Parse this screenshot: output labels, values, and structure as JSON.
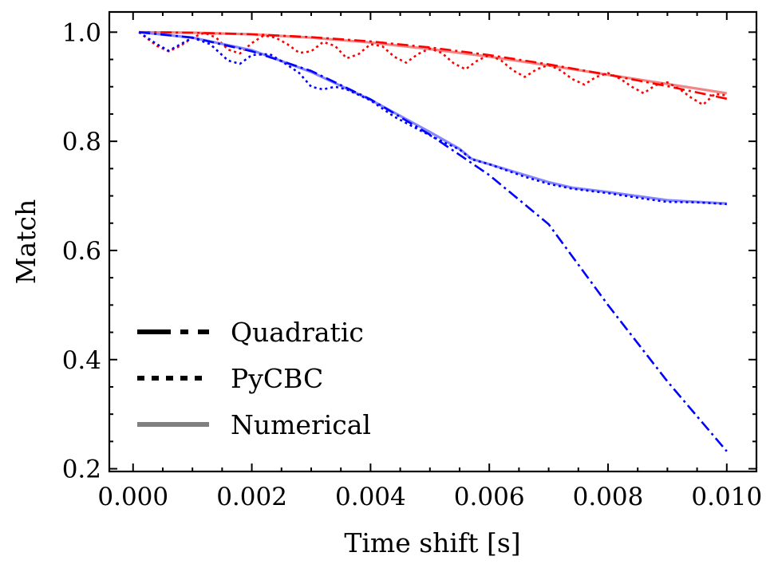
{
  "chart_data": {
    "type": "line",
    "xlabel": "Time shift [s]",
    "ylabel": "Match",
    "xlim": [
      -0.0004,
      0.0105
    ],
    "ylim": [
      0.195,
      1.037
    ],
    "x_ticks": [
      0.0,
      0.002,
      0.004,
      0.006,
      0.008,
      0.01
    ],
    "x_tick_labels": [
      "0.000",
      "0.002",
      "0.004",
      "0.006",
      "0.008",
      "0.010"
    ],
    "y_ticks": [
      0.2,
      0.4,
      0.6,
      0.8,
      1.0
    ],
    "y_tick_labels": [
      "0.2",
      "0.4",
      "0.6",
      "0.8",
      "1.0"
    ],
    "legend": {
      "placement": "lower-left",
      "entries": [
        {
          "label": "Quadratic",
          "style": "dashdot",
          "color": "#000000"
        },
        {
          "label": "PyCBC",
          "style": "dotted",
          "color": "#000000"
        },
        {
          "label": "Numerical",
          "style": "solid",
          "color": "#808080"
        }
      ]
    },
    "series": [
      {
        "name": "Numerical (red)",
        "style": "solid",
        "color": "#f08080",
        "x": [
          0.0001,
          0.001,
          0.002,
          0.003,
          0.004,
          0.005,
          0.006,
          0.007,
          0.008,
          0.009,
          0.01
        ],
        "y": [
          1.0,
          0.999,
          0.996,
          0.99,
          0.981,
          0.969,
          0.955,
          0.939,
          0.922,
          0.905,
          0.888
        ]
      },
      {
        "name": "Quadratic (red)",
        "style": "dashdot",
        "color": "#ff0000",
        "x": [
          0.0001,
          0.001,
          0.002,
          0.003,
          0.004,
          0.005,
          0.006,
          0.007,
          0.008,
          0.009,
          0.01
        ],
        "y": [
          1.0,
          0.999,
          0.996,
          0.991,
          0.983,
          0.972,
          0.958,
          0.941,
          0.922,
          0.901,
          0.878
        ]
      },
      {
        "name": "PyCBC (red)",
        "style": "dotted",
        "color": "#ff0000",
        "x": [
          0.0001,
          0.0004,
          0.0006,
          0.0008,
          0.001,
          0.0012,
          0.0014,
          0.0016,
          0.0018,
          0.002,
          0.0022,
          0.0024,
          0.0026,
          0.0028,
          0.003,
          0.0032,
          0.0034,
          0.0036,
          0.0038,
          0.004,
          0.0042,
          0.0044,
          0.0046,
          0.0048,
          0.005,
          0.0052,
          0.0054,
          0.0056,
          0.0058,
          0.006,
          0.0062,
          0.0064,
          0.0066,
          0.0068,
          0.007,
          0.0072,
          0.0074,
          0.0076,
          0.0078,
          0.008,
          0.0082,
          0.0084,
          0.0086,
          0.0088,
          0.009,
          0.0092,
          0.0094,
          0.0096,
          0.0098,
          0.01
        ],
        "y": [
          1.0,
          0.975,
          0.965,
          0.975,
          0.99,
          0.999,
          0.99,
          0.968,
          0.961,
          0.98,
          0.994,
          0.99,
          0.978,
          0.962,
          0.965,
          0.982,
          0.975,
          0.952,
          0.96,
          0.978,
          0.974,
          0.955,
          0.944,
          0.96,
          0.97,
          0.962,
          0.943,
          0.932,
          0.948,
          0.958,
          0.948,
          0.93,
          0.918,
          0.932,
          0.94,
          0.93,
          0.914,
          0.904,
          0.918,
          0.925,
          0.915,
          0.9,
          0.888,
          0.903,
          0.908,
          0.896,
          0.88,
          0.867,
          0.887,
          0.884
        ]
      },
      {
        "name": "Numerical (blue)",
        "style": "solid",
        "color": "#8080ff",
        "x": [
          0.0001,
          0.001,
          0.002,
          0.003,
          0.004,
          0.005,
          0.0055,
          0.0057,
          0.006,
          0.007,
          0.0074,
          0.008,
          0.009,
          0.01
        ],
        "y": [
          1.0,
          0.99,
          0.967,
          0.927,
          0.876,
          0.817,
          0.786,
          0.768,
          0.758,
          0.725,
          0.715,
          0.707,
          0.692,
          0.686
        ]
      },
      {
        "name": "Quadratic (blue)",
        "style": "dashdot",
        "color": "#0000ff",
        "x": [
          0.0001,
          0.001,
          0.002,
          0.003,
          0.004,
          0.005,
          0.006,
          0.007,
          0.008,
          0.009,
          0.01
        ],
        "y": [
          1.0,
          0.99,
          0.965,
          0.929,
          0.877,
          0.812,
          0.738,
          0.648,
          0.5,
          0.36,
          0.232
        ]
      },
      {
        "name": "PyCBC (blue)",
        "style": "dotted",
        "color": "#0000ff",
        "x": [
          0.0001,
          0.0004,
          0.0006,
          0.0008,
          0.001,
          0.0013,
          0.0016,
          0.0018,
          0.002,
          0.0023,
          0.0026,
          0.0028,
          0.003,
          0.0032,
          0.0034,
          0.0036,
          0.004,
          0.0044,
          0.0048,
          0.0052,
          0.0055,
          0.0057,
          0.006,
          0.0066,
          0.007,
          0.0074,
          0.008,
          0.0086,
          0.009,
          0.0095,
          0.01
        ],
        "y": [
          1.0,
          0.978,
          0.966,
          0.978,
          0.99,
          0.978,
          0.948,
          0.942,
          0.958,
          0.96,
          0.94,
          0.925,
          0.9,
          0.895,
          0.9,
          0.895,
          0.875,
          0.845,
          0.822,
          0.8,
          0.785,
          0.767,
          0.758,
          0.735,
          0.722,
          0.713,
          0.705,
          0.695,
          0.689,
          0.688,
          0.685
        ]
      }
    ]
  }
}
